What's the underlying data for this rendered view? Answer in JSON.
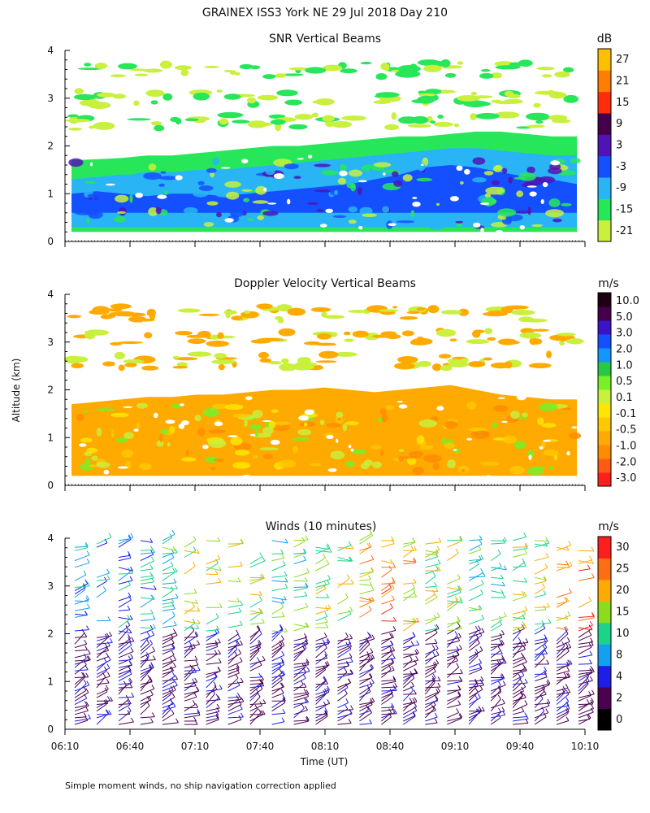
{
  "figure": {
    "title": "GRAINEX ISS3 York NE  29 Jul 2018 Day 210",
    "ylabel": "Altitude (km)",
    "xlabel": "Time (UT)",
    "footnote": "Simple moment winds, no ship navigation correction applied"
  },
  "colors": {
    "snr": [
      "#c8f03c",
      "#28e65a",
      "#28b4f5",
      "#1450ff",
      "#5014b4",
      "#46004b",
      "#ff2d0a",
      "#ff7d00",
      "#ffbe00"
    ],
    "doppler": [
      "#ff1e1e",
      "#ff5a14",
      "#ff8c00",
      "#ffaa00",
      "#ffc800",
      "#ffe600",
      "#c8f03c",
      "#78f028",
      "#28c846",
      "#1496ff",
      "#1450ff",
      "#3c14c8",
      "#46004b",
      "#1e0014"
    ],
    "winds": [
      "#000000",
      "#4b0050",
      "#1e1ee6",
      "#14a0f0",
      "#1ed28c",
      "#8cdc1e",
      "#ffaa00",
      "#ff6e14",
      "#ff1e1e"
    ]
  },
  "chart_data": [
    {
      "type": "heatmap",
      "title": "SNR Vertical Beams",
      "units": "dB",
      "x_ticks": [],
      "y_ticks": [
        "0",
        "1",
        "2",
        "3",
        "4"
      ],
      "ylim": [
        0,
        4
      ],
      "xlim": [
        "06:10",
        "10:10"
      ],
      "colorbar_labels": [
        "-21",
        "-15",
        "-9",
        "-3",
        "3",
        "9",
        "15",
        "21",
        "27"
      ],
      "layers": [
        {
          "level": -15,
          "color_index": 1,
          "bottom_km": 0.2,
          "top_km_series": [
            1.7,
            1.72,
            1.75,
            1.8,
            1.8,
            1.85,
            1.9,
            1.95,
            2.0,
            2.0,
            2.05,
            2.1,
            2.15,
            2.2,
            2.2,
            2.25,
            2.3,
            2.3,
            2.25,
            2.2,
            2.2
          ]
        },
        {
          "level": -9,
          "color_index": 2,
          "bottom_km": 0.3,
          "top_km_series": [
            1.3,
            1.35,
            1.4,
            1.45,
            1.45,
            1.5,
            1.5,
            1.55,
            1.6,
            1.65,
            1.7,
            1.75,
            1.8,
            1.85,
            1.9,
            1.95,
            1.95,
            1.9,
            1.85,
            1.8,
            1.8
          ]
        },
        {
          "level": -3,
          "color_index": 3,
          "bottom_km": 0.6,
          "top_km_series": [
            1.0,
            1.05,
            1.0,
            0.95,
            1.0,
            1.0,
            0.95,
            1.0,
            1.05,
            1.1,
            1.15,
            1.2,
            1.3,
            1.4,
            1.55,
            1.6,
            1.55,
            1.45,
            1.35,
            1.3,
            1.2
          ]
        }
      ],
      "cloud_layers_km": [
        2.5,
        3.0,
        3.6
      ]
    },
    {
      "type": "heatmap",
      "title": "Doppler Velocity Vertical Beams",
      "units": "m/s",
      "x_ticks": [],
      "y_ticks": [
        "0",
        "1",
        "2",
        "3",
        "4"
      ],
      "ylim": [
        0,
        4
      ],
      "xlim": [
        "06:10",
        "10:10"
      ],
      "colorbar_labels": [
        "10.0",
        "5.0",
        "3.0",
        "2.0",
        "1.0",
        "0.5",
        "0.1",
        "-0.1",
        "-0.5",
        "-1.0",
        "-2.0",
        "-3.0"
      ],
      "layers": [
        {
          "level": -0.5,
          "color_index": 3,
          "bottom_km": 0.2,
          "top_km_series": [
            1.7,
            1.75,
            1.8,
            1.85,
            1.85,
            1.9,
            1.9,
            1.95,
            2.0,
            2.0,
            2.05,
            2.0,
            1.95,
            2.0,
            2.05,
            2.1,
            2.0,
            1.9,
            1.85,
            1.8,
            1.8
          ]
        }
      ],
      "cloud_layers_km": [
        2.6,
        3.1,
        3.6
      ]
    },
    {
      "type": "wind_barbs",
      "title": "Winds (10 minutes)",
      "units": "m/s",
      "x_ticks": [
        "06:10",
        "06:40",
        "07:10",
        "07:40",
        "08:10",
        "08:40",
        "09:10",
        "09:40",
        "10:10"
      ],
      "y_ticks": [
        "0",
        "1",
        "2",
        "3",
        "4"
      ],
      "ylim": [
        0,
        4
      ],
      "xlim": [
        "06:10",
        "10:10"
      ],
      "colorbar_labels": [
        "0",
        "2",
        "4",
        "8",
        "10",
        "15",
        "20",
        "25",
        "30"
      ],
      "profiles": 24,
      "lower_speed_series": [
        3,
        3,
        4,
        4,
        4,
        5,
        5,
        5,
        5,
        5,
        5,
        6,
        6,
        6,
        6,
        6,
        6,
        5,
        5,
        5,
        5,
        4,
        4,
        4
      ],
      "upper_speed_series": [
        8,
        8,
        9,
        10,
        12,
        14,
        15,
        15,
        14,
        13,
        12,
        14,
        16,
        18,
        20,
        18,
        16,
        14,
        12,
        12,
        14,
        16,
        18,
        20
      ]
    }
  ]
}
